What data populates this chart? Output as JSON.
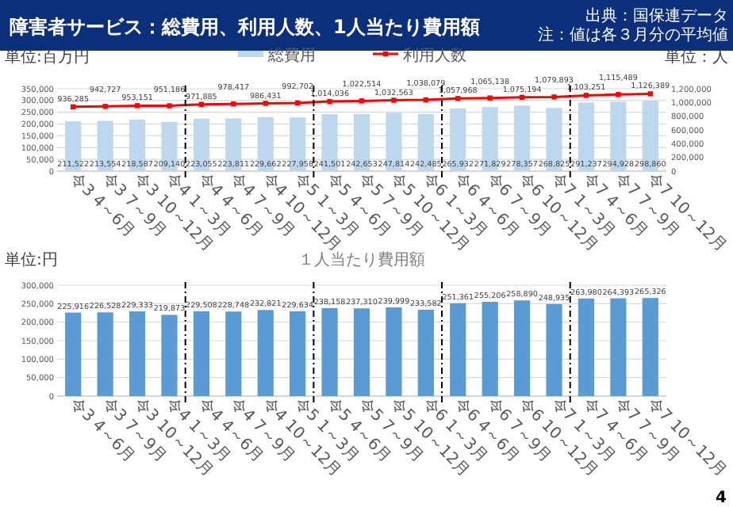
{
  "chart_data": [
    {
      "type": "bar",
      "title": "障害者サービス：総費用、利用人数、1人当たり費用額",
      "ylabel": "単位:百万円",
      "y2label": "単位：人",
      "annotations": [
        "出典：国保連データ",
        "注：値は各３月分の平均値"
      ],
      "categories": [
        "令3\n4～6月",
        "令3\n7～9月",
        "令3\n10～12月",
        "令4\n1～3月",
        "令4\n4～6月",
        "令4\n7～9月",
        "令4\n10～12月",
        "令5\n1～3月",
        "令5\n4～6月",
        "令5\n7～9月",
        "令5\n10～12月",
        "令6\n1～3月",
        "令6\n4～6月",
        "令6\n7～9月",
        "令6\n10～12月",
        "令7\n1～3月",
        "令7\n4～6月",
        "令7\n7～9月",
        "令7\n10～12月"
      ],
      "series": [
        {
          "name": "総費用",
          "type": "bar",
          "color": "#bdd7ee",
          "values": [
            211522,
            213554,
            218587,
            209140,
            223055,
            223811,
            229662,
            227958,
            241501,
            242653,
            247814,
            242485,
            265932,
            271829,
            278357,
            268825,
            291237,
            294928,
            298860
          ],
          "value_labels": [
            "211,522",
            "213,554",
            "218,587",
            "209,140",
            "223,055",
            "223,811",
            "229,662",
            "227,958",
            "241,501",
            "242,653",
            "247,814",
            "242,485",
            "265,932",
            "271,829",
            "278,357",
            "268,825",
            "291,237",
            "294,928",
            "298,860"
          ]
        },
        {
          "name": "利用人数",
          "type": "line",
          "axis": "y2",
          "color": "#ff0000",
          "values": [
            936285,
            942727,
            953151,
            951186,
            971885,
            978417,
            986431,
            992702,
            1014036,
            1022514,
            1032563,
            1038079,
            1057968,
            1065138,
            1075194,
            1079893,
            1103251,
            1115489,
            1126389
          ],
          "value_labels": [
            "936,285",
            "942,727",
            "953,151",
            "951,186",
            "971,885",
            "978,417",
            "986,431",
            "992,702",
            "1,014,036",
            "1,022,514",
            "1,032,563",
            "1,038,079",
            "1,057,968",
            "1,065,138",
            "1,075,194",
            "1,079,893",
            "1,103,251",
            "1,115,489",
            "1,126,389"
          ]
        }
      ],
      "marker": "square",
      "ylim": [
        0,
        350000
      ],
      "yticks": [
        0,
        {
          "value": 50000,
          "label": "50,000"
        },
        {
          "value": 100000,
          "label": "100,000"
        },
        {
          "value": 150000,
          "label": "150,000"
        },
        {
          "value": 200000,
          "label": "200,000"
        },
        {
          "value": 250000,
          "label": "250,000"
        },
        {
          "value": 300000,
          "label": "300,000"
        },
        {
          "value": 350000,
          "label": "350,000"
        }
      ],
      "y2lim": [
        0,
        1200000
      ],
      "y2ticks": [
        0,
        {
          "value": 200000,
          "label": "200,000"
        },
        {
          "value": 400000,
          "label": "400,000"
        },
        {
          "value": 600000,
          "label": "600,000"
        },
        {
          "value": 800000,
          "label": "800,000"
        },
        {
          "value": 1000000,
          "label": "1,000,000"
        },
        {
          "value": 1200000,
          "label": "1,200,000"
        }
      ],
      "grid": "y",
      "legend": "top"
    },
    {
      "type": "bar",
      "title": "１人当たり費用額",
      "ylabel": "単位:円",
      "annotations": [
        "4"
      ],
      "categories": [
        "令3\n4～6月",
        "令3\n7～9月",
        "令3\n10～12月",
        "令4\n1～3月",
        "令4\n4～6月",
        "令4\n7～9月",
        "令4\n10～12月",
        "令5\n1～3月",
        "令5\n4～6月",
        "令5\n7～9月",
        "令5\n10～12月",
        "令6\n1～3月",
        "令6\n4～6月",
        "令6\n7～9月",
        "令6\n10～12月",
        "令7\n1～3月",
        "令7\n4～6月",
        "令7\n7～9月",
        "令7\n10～12月"
      ],
      "color": "#5b9bd5",
      "values": [
        225916,
        226528,
        229333,
        219873,
        229508,
        228748,
        232821,
        229634,
        238158,
        237310,
        239999,
        233582,
        251361,
        255206,
        258890,
        248935,
        263980,
        264393,
        265326
      ],
      "value_labels": [
        "225,916",
        "226,528",
        "229,333",
        "219,873",
        "229,508",
        "228,748",
        "232,821",
        "229,634",
        "238,158",
        "237,310",
        "239,999",
        "233,582",
        "251,361",
        "255,206",
        "258,890",
        "248,935",
        "263,980",
        "264,393",
        "265,326"
      ],
      "ylim": [
        0,
        300000
      ],
      "yticks": [
        0,
        {
          "value": 50000,
          "label": "50,000"
        },
        {
          "value": 100000,
          "label": "100,000"
        },
        {
          "value": 150000,
          "label": "150,000"
        },
        {
          "value": 200000,
          "label": "200,000"
        },
        {
          "value": 250000,
          "label": "250,000"
        },
        {
          "value": 300000,
          "label": "300,000"
        }
      ],
      "grid": "y"
    }
  ]
}
